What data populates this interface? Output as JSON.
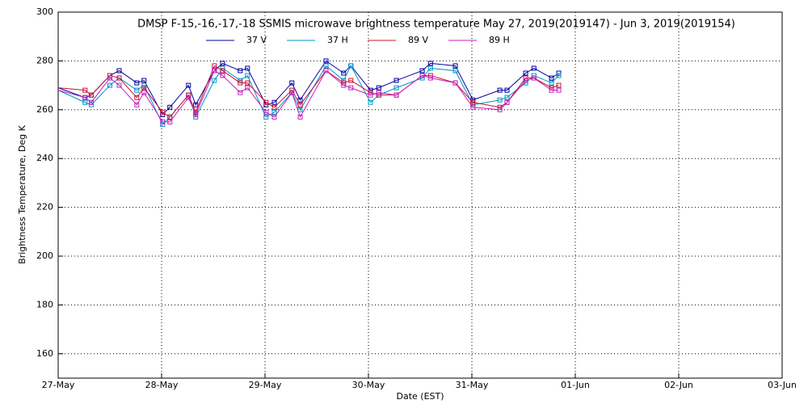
{
  "chart_data": {
    "type": "line",
    "title": "DMSP F-15,-16,-17,-18 SSMIS microwave brightness temperature May 27, 2019(2019147) - Jun  3, 2019(2019154)",
    "xlabel": "Date (EST)",
    "ylabel": "Brightness Temperature, Deg K",
    "x": [
      0,
      0.26,
      0.32,
      0.5,
      0.59,
      0.76,
      0.83,
      1.01,
      1.08,
      1.26,
      1.33,
      1.51,
      1.59,
      1.76,
      1.83,
      2.01,
      2.09,
      2.26,
      2.34,
      2.59,
      2.76,
      2.83,
      3.02,
      3.1,
      3.27,
      3.52,
      3.6,
      3.84,
      4.01,
      4.27,
      4.34,
      4.52,
      4.6,
      4.77,
      4.84
    ],
    "series": [
      {
        "name": "37 V",
        "color": "#0000a0",
        "values": [
          269,
          265,
          266,
          274,
          276,
          271,
          272,
          258,
          261,
          270,
          262,
          276,
          279,
          276,
          277,
          262,
          263,
          271,
          264,
          280,
          275,
          278,
          268,
          269,
          272,
          276,
          279,
          278,
          264,
          268,
          268,
          275,
          277,
          273,
          275
        ]
      },
      {
        "name": "37 H",
        "color": "#0096c8",
        "values": [
          268,
          263,
          262,
          270,
          273,
          268,
          270,
          254,
          257,
          266,
          257,
          272,
          277,
          272,
          274,
          257,
          259,
          267,
          260,
          278,
          272,
          278,
          263,
          266,
          269,
          273,
          277,
          276,
          262,
          264,
          265,
          271,
          274,
          271,
          274
        ]
      },
      {
        "name": "89 V",
        "color": "#d01030",
        "values": [
          269,
          268,
          266,
          274,
          273,
          265,
          269,
          259,
          257,
          266,
          259,
          278,
          276,
          271,
          271,
          263,
          261,
          268,
          262,
          276,
          271,
          272,
          267,
          266,
          266,
          274,
          274,
          271,
          263,
          261,
          263,
          273,
          273,
          269,
          270
        ]
      },
      {
        "name": "89 H",
        "color": "#c020c0",
        "values": [
          268,
          265,
          263,
          273,
          270,
          262,
          267,
          255,
          255,
          265,
          258,
          276,
          274,
          267,
          269,
          259,
          257,
          267,
          257,
          276,
          270,
          269,
          266,
          267,
          266,
          274,
          273,
          271,
          261,
          260,
          263,
          272,
          273,
          268,
          268
        ]
      }
    ],
    "xlim": [
      0,
      7
    ],
    "xticks": [
      {
        "value": 0,
        "label": "27-May"
      },
      {
        "value": 1,
        "label": "28-May"
      },
      {
        "value": 2,
        "label": "29-May"
      },
      {
        "value": 3,
        "label": "30-May"
      },
      {
        "value": 4,
        "label": "31-May"
      },
      {
        "value": 5,
        "label": "01-Jun"
      },
      {
        "value": 6,
        "label": "02-Jun"
      },
      {
        "value": 7,
        "label": "03-Jun"
      }
    ],
    "ylim": [
      150,
      300
    ],
    "yticks": [
      160,
      180,
      200,
      220,
      240,
      260,
      280,
      300
    ],
    "grid": true,
    "legend": "top"
  }
}
